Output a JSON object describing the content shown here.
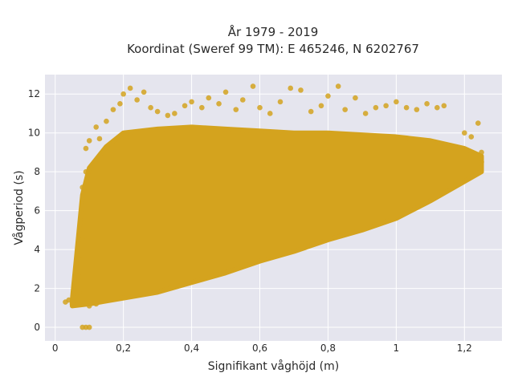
{
  "chart_data": {
    "type": "scatter",
    "title": "År 1979 - 2019",
    "subtitle": "Koordinat (Sweref 99 TM): E 465246, N 6202767",
    "xlabel": "Signifikant våghöjd (m)",
    "ylabel": "Vågperiod (s)",
    "xlim": [
      -0.03,
      1.31
    ],
    "ylim": [
      -0.7,
      13.0
    ],
    "x_ticks": [
      0,
      0.2,
      0.4,
      0.6,
      0.8,
      1,
      1.2
    ],
    "x_tick_labels": [
      "0",
      "0,2",
      "0,4",
      "0,6",
      "0,8",
      "1",
      "1,2"
    ],
    "y_ticks": [
      0,
      2,
      4,
      6,
      8,
      10,
      12
    ],
    "y_tick_labels": [
      "0",
      "2",
      "4",
      "6",
      "8",
      "10",
      "12"
    ],
    "grid": true,
    "legend": "none",
    "marker_color": "#d4a31e",
    "background_color": "#e5e5ee",
    "series": [
      {
        "values_note_free": true,
        "points": [
          [
            0.03,
            1.3
          ],
          [
            0.04,
            1.4
          ],
          [
            0.05,
            1.2
          ],
          [
            0.06,
            1.5
          ],
          [
            0.07,
            1.8
          ],
          [
            0.07,
            2.6
          ],
          [
            0.07,
            3.5
          ],
          [
            0.08,
            4.5
          ],
          [
            0.08,
            5.8
          ],
          [
            0.08,
            7.2
          ],
          [
            0.09,
            8.0
          ],
          [
            0.09,
            9.2
          ],
          [
            0.1,
            9.6
          ],
          [
            0.1,
            1.1
          ],
          [
            0.12,
            1.2
          ],
          [
            0.12,
            10.3
          ],
          [
            0.13,
            9.7
          ],
          [
            0.15,
            10.6
          ],
          [
            0.17,
            11.2
          ],
          [
            0.19,
            11.5
          ],
          [
            0.2,
            12.0
          ],
          [
            0.22,
            12.3
          ],
          [
            0.24,
            11.7
          ],
          [
            0.26,
            12.1
          ],
          [
            0.28,
            11.3
          ],
          [
            0.3,
            11.1
          ],
          [
            0.33,
            10.9
          ],
          [
            0.35,
            11.0
          ],
          [
            0.38,
            11.4
          ],
          [
            0.4,
            11.6
          ],
          [
            0.43,
            11.3
          ],
          [
            0.45,
            11.8
          ],
          [
            0.48,
            11.5
          ],
          [
            0.5,
            12.1
          ],
          [
            0.53,
            11.2
          ],
          [
            0.55,
            11.7
          ],
          [
            0.58,
            12.4
          ],
          [
            0.6,
            11.3
          ],
          [
            0.63,
            11.0
          ],
          [
            0.66,
            11.6
          ],
          [
            0.69,
            12.3
          ],
          [
            0.72,
            12.2
          ],
          [
            0.75,
            11.1
          ],
          [
            0.78,
            11.4
          ],
          [
            0.8,
            11.9
          ],
          [
            0.83,
            12.4
          ],
          [
            0.85,
            11.2
          ],
          [
            0.88,
            11.8
          ],
          [
            0.91,
            11.0
          ],
          [
            0.94,
            11.3
          ],
          [
            0.97,
            11.4
          ],
          [
            1.0,
            11.6
          ],
          [
            1.03,
            11.3
          ],
          [
            1.06,
            11.2
          ],
          [
            1.09,
            11.5
          ],
          [
            1.12,
            11.3
          ],
          [
            1.14,
            11.4
          ],
          [
            1.17,
            9.2
          ],
          [
            1.2,
            10.0
          ],
          [
            1.22,
            9.8
          ],
          [
            1.24,
            10.5
          ],
          [
            1.25,
            9.0
          ],
          [
            1.25,
            8.5
          ],
          [
            1.24,
            8.2
          ],
          [
            0.08,
            0.0
          ],
          [
            0.09,
            0.0
          ],
          [
            0.1,
            0.0
          ]
        ]
      }
    ],
    "dense_region": {
      "lower_bound": [
        [
          0.05,
          1.1
        ],
        [
          0.1,
          1.2
        ],
        [
          0.2,
          1.5
        ],
        [
          0.3,
          1.8
        ],
        [
          0.4,
          2.3
        ],
        [
          0.5,
          2.8
        ],
        [
          0.6,
          3.4
        ],
        [
          0.7,
          3.9
        ],
        [
          0.8,
          4.5
        ],
        [
          0.9,
          5.0
        ],
        [
          1.0,
          5.6
        ],
        [
          1.1,
          6.5
        ],
        [
          1.2,
          7.5
        ],
        [
          1.25,
          8.0
        ]
      ],
      "upper_bound": [
        [
          0.05,
          1.4
        ],
        [
          0.08,
          6.8
        ],
        [
          0.1,
          8.2
        ],
        [
          0.15,
          9.3
        ],
        [
          0.2,
          10.0
        ],
        [
          0.3,
          10.2
        ],
        [
          0.4,
          10.3
        ],
        [
          0.5,
          10.2
        ],
        [
          0.6,
          10.1
        ],
        [
          0.7,
          10.0
        ],
        [
          0.8,
          10.0
        ],
        [
          0.9,
          9.9
        ],
        [
          1.0,
          9.8
        ],
        [
          1.1,
          9.6
        ],
        [
          1.2,
          9.2
        ],
        [
          1.25,
          8.8
        ]
      ]
    }
  }
}
